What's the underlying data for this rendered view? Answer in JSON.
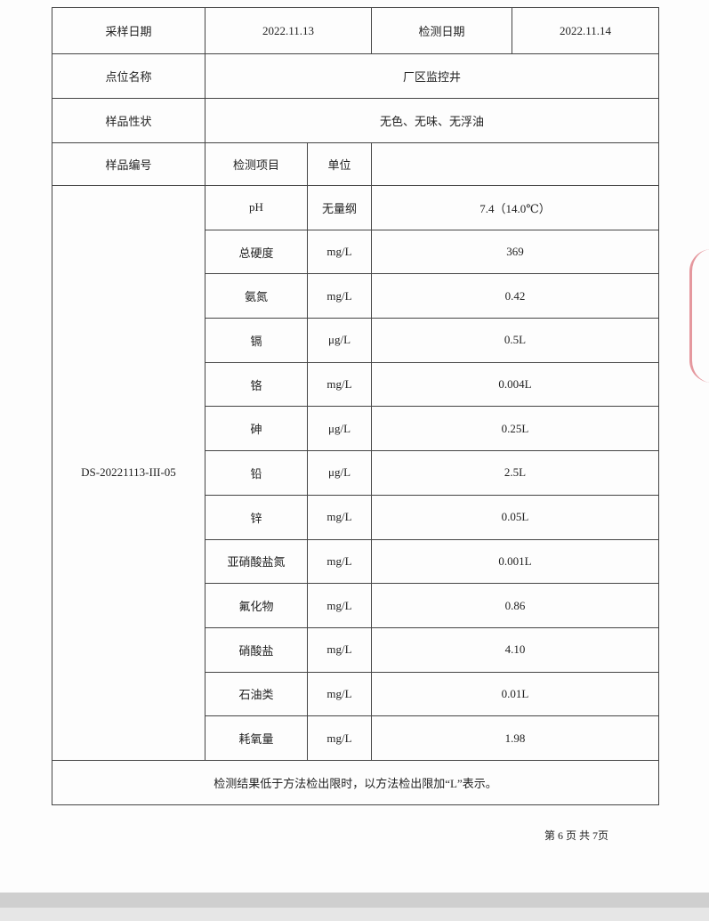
{
  "table": {
    "rows": [
      [
        "采样日期",
        "2022.11.13",
        "检测日期",
        "2022.11.14"
      ],
      [
        "点位名称",
        "厂区监控井"
      ],
      [
        "样品性状",
        "无色、无味、无浮油"
      ],
      [
        "样品编号",
        "检测项目",
        "单位"
      ]
    ],
    "sample_id": "DS-20221113-III-05",
    "results": [
      [
        "pH",
        "无量纲",
        "7.4（14.0℃）"
      ],
      [
        "总硬度",
        "mg/L",
        "369"
      ],
      [
        "氨氮",
        "mg/L",
        "0.42"
      ],
      [
        "镉",
        "μg/L",
        "0.5L"
      ],
      [
        "铬",
        "mg/L",
        "0.004L"
      ],
      [
        "砷",
        "μg/L",
        "0.25L"
      ],
      [
        "铅",
        "μg/L",
        "2.5L"
      ],
      [
        "锌",
        "mg/L",
        "0.05L"
      ],
      [
        "亚硝酸盐氮",
        "mg/L",
        "0.001L"
      ],
      [
        "氟化物",
        "mg/L",
        "0.86"
      ],
      [
        "硝酸盐",
        "mg/L",
        "4.10"
      ],
      [
        "石油类",
        "mg/L",
        "0.01L"
      ],
      [
        "耗氧量",
        "mg/L",
        "1.98"
      ]
    ],
    "note": "检测结果低于方法检出限时，以方法检出限加“L”表示。"
  },
  "footer": {
    "page": "第 6 页 共 7页"
  }
}
